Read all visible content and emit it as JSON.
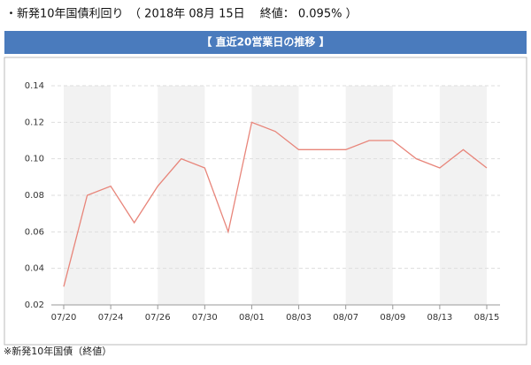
{
  "header": "・新発10年国債利回り　（ 2018年 08月 15日　 終値： 0.095% ）",
  "chart_data": {
    "type": "line",
    "title": "【 直近20営業日の推移 】",
    "categories": [
      "07/20",
      null,
      "07/24",
      null,
      "07/26",
      null,
      "07/30",
      null,
      "08/01",
      null,
      "08/03",
      null,
      "08/07",
      null,
      "08/09",
      null,
      "08/13",
      null,
      "08/15"
    ],
    "values": [
      0.03,
      0.08,
      0.085,
      0.065,
      0.085,
      0.1,
      0.095,
      0.06,
      0.12,
      0.115,
      0.105,
      0.105,
      0.105,
      0.11,
      0.11,
      0.1,
      0.095,
      0.105,
      0.095
    ],
    "color": "#e8857a",
    "ylim": [
      0.02,
      0.14
    ],
    "yticks": [
      0.02,
      0.04,
      0.06,
      0.08,
      {
        "value": 0.1,
        "label": "0.10"
      },
      0.12,
      0.14
    ],
    "grid": true
  },
  "footnote": "※新発10年国債（終値）"
}
